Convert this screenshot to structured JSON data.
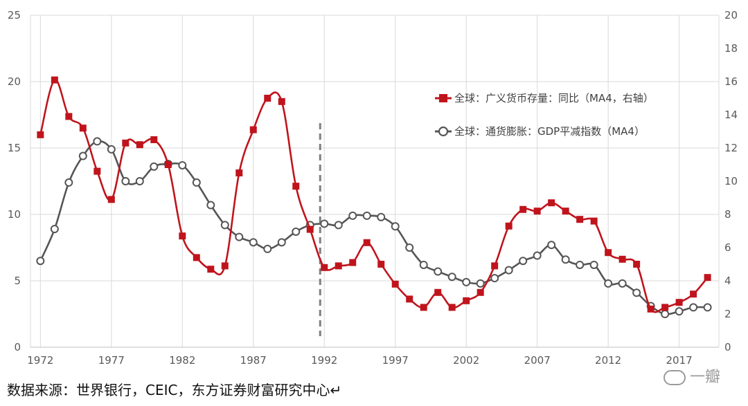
{
  "chart_data": {
    "type": "line",
    "x": [
      1972,
      1973,
      1974,
      1975,
      1976,
      1977,
      1978,
      1979,
      1980,
      1981,
      1982,
      1983,
      1984,
      1985,
      1986,
      1987,
      1988,
      1989,
      1990,
      1991,
      1992,
      1993,
      1994,
      1995,
      1996,
      1997,
      1998,
      1999,
      2000,
      2001,
      2002,
      2003,
      2004,
      2005,
      2006,
      2007,
      2008,
      2009,
      2010,
      2011,
      2012,
      2013,
      2014,
      2015,
      2016,
      2017,
      2018,
      2019
    ],
    "x_ticks": [
      "1972",
      "1977",
      "1982",
      "1987",
      "1992",
      "1997",
      "2002",
      "2007",
      "2012",
      "2017"
    ],
    "y_left": {
      "ticks": [
        "0",
        "5",
        "10",
        "15",
        "20",
        "25"
      ],
      "range": [
        0,
        25
      ]
    },
    "y_right": {
      "ticks": [
        "0",
        "2",
        "4",
        "6",
        "8",
        "10",
        "12",
        "14",
        "16",
        "18",
        "20"
      ],
      "range": [
        0,
        20
      ]
    },
    "vertical_marker_x": 1992,
    "grid": true,
    "legend_position": "right",
    "series": [
      {
        "name": "全球：广义货币存量：同比（MA4，右轴）",
        "axis": "right",
        "marker": "square",
        "color": "#c0141c",
        "values": [
          12.8,
          16.1,
          13.9,
          13.2,
          10.6,
          8.9,
          12.3,
          12.2,
          12.5,
          11.0,
          6.7,
          5.4,
          4.7,
          4.9,
          10.5,
          13.1,
          15.0,
          14.8,
          9.7,
          7.1,
          4.8,
          4.9,
          5.1,
          6.3,
          5.0,
          3.8,
          2.9,
          2.4,
          3.3,
          2.4,
          2.8,
          3.3,
          4.9,
          7.3,
          8.3,
          8.2,
          8.7,
          8.2,
          7.7,
          7.6,
          5.7,
          5.3,
          5.0,
          2.3,
          2.4,
          2.7,
          3.2,
          4.2
        ]
      },
      {
        "name": "全球：通货膨胀：GDP平减指数（MA4）",
        "axis": "left",
        "marker": "circle",
        "color": "#555555",
        "values": [
          6.5,
          8.9,
          12.4,
          14.4,
          15.5,
          14.9,
          12.5,
          12.5,
          13.6,
          13.8,
          13.7,
          12.4,
          10.7,
          9.2,
          8.3,
          7.9,
          7.4,
          7.9,
          8.7,
          9.2,
          9.3,
          9.2,
          9.9,
          9.9,
          9.8,
          9.1,
          7.5,
          6.2,
          5.7,
          5.3,
          4.9,
          4.8,
          5.2,
          5.8,
          6.5,
          6.9,
          7.7,
          6.6,
          6.2,
          6.2,
          4.8,
          4.8,
          4.1,
          3.1,
          2.5,
          2.7,
          3.0,
          3.0
        ]
      }
    ]
  },
  "source_text": "数据来源：世界银行，CEIC，东方证券财富研究中心↵",
  "watermark_text": "一瓣"
}
